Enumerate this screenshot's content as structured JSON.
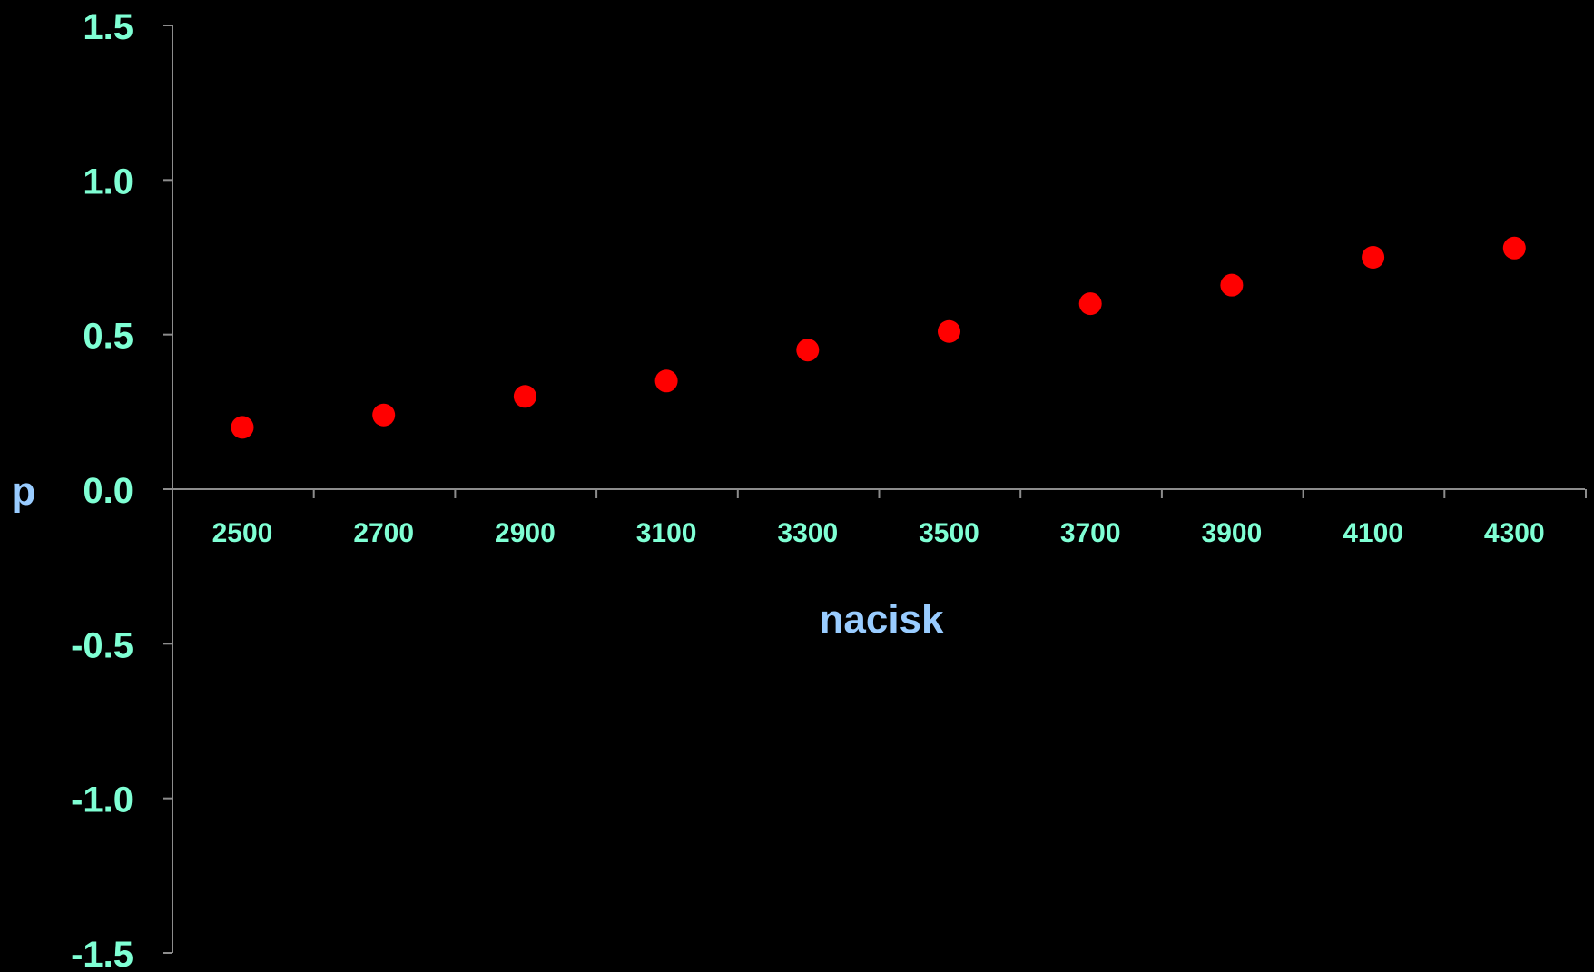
{
  "chart_data": {
    "type": "scatter",
    "title": "",
    "xlabel": "nacisk",
    "ylabel": "p",
    "categories": [
      "2500",
      "2700",
      "2900",
      "3100",
      "3300",
      "3500",
      "3700",
      "3900",
      "4100",
      "4300"
    ],
    "y_ticks": [
      "1.5",
      "1.0",
      "0.5",
      "0.0",
      "-0.5",
      "-1.0",
      "-1.5"
    ],
    "ylim": [
      -1.5,
      1.5
    ],
    "grid": false,
    "legend": "none",
    "series": [
      {
        "values": [
          0.2,
          0.24,
          0.3,
          0.35,
          0.45,
          0.51,
          0.6,
          0.66,
          0.75,
          0.78
        ]
      }
    ],
    "colors": {
      "background": "#000000",
      "axis": "#8c8c8c",
      "tick_label": "#7fffd4",
      "axis_title": "#99ccff",
      "marker": "#ff0000"
    }
  }
}
